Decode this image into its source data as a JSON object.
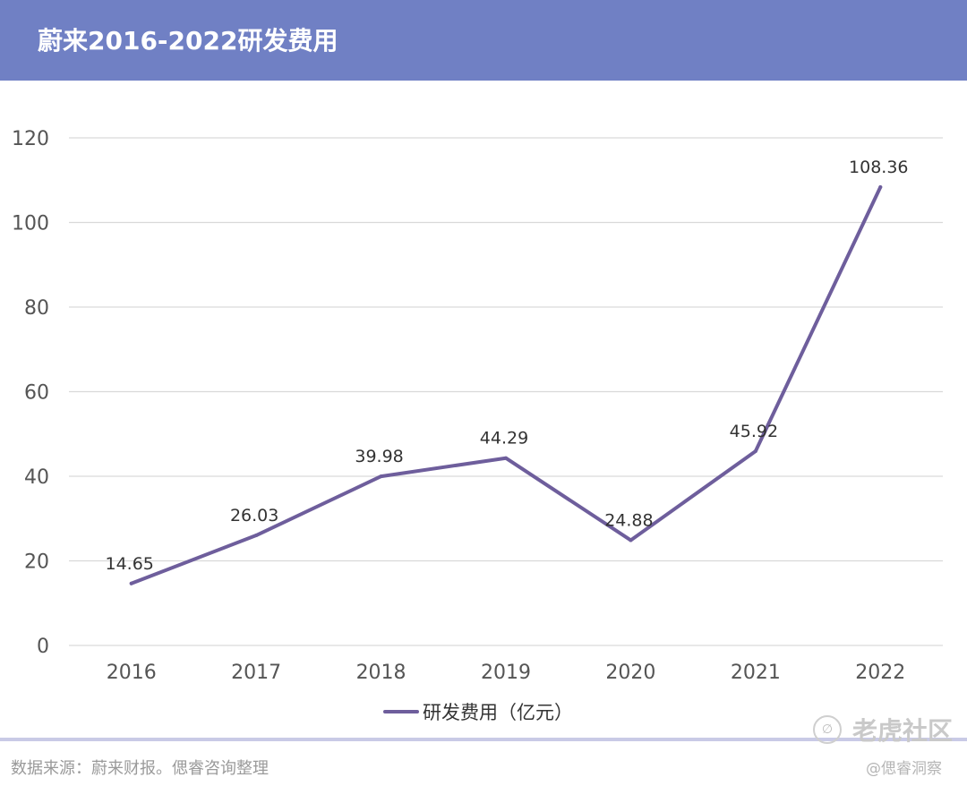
{
  "header": {
    "title": "蔚来2016-2022研发费用"
  },
  "chart_data": {
    "type": "line",
    "categories": [
      "2016",
      "2017",
      "2018",
      "2019",
      "2020",
      "2021",
      "2022"
    ],
    "series": [
      {
        "name": "研发费用（亿元）",
        "values": [
          14.65,
          26.03,
          39.98,
          44.29,
          24.88,
          45.92,
          108.36
        ],
        "color": "#6e5e9c"
      }
    ],
    "data_labels": [
      "14.65",
      "26.03",
      "39.98",
      "44.29",
      "24.88",
      "45.92",
      "108.36"
    ],
    "yticks": [
      "0",
      "20",
      "40",
      "60",
      "80",
      "100",
      "120"
    ],
    "ylim": [
      0,
      120
    ],
    "grid": true,
    "legend_position": "bottom"
  },
  "footer": {
    "source": "数据来源：蔚来财报。偲睿咨询整理",
    "watermark": "老虎社区",
    "handle": "@偲睿洞察"
  },
  "colors": {
    "header": "#7080c4",
    "line": "#6e5e9c",
    "rule": "#c9cae6"
  }
}
